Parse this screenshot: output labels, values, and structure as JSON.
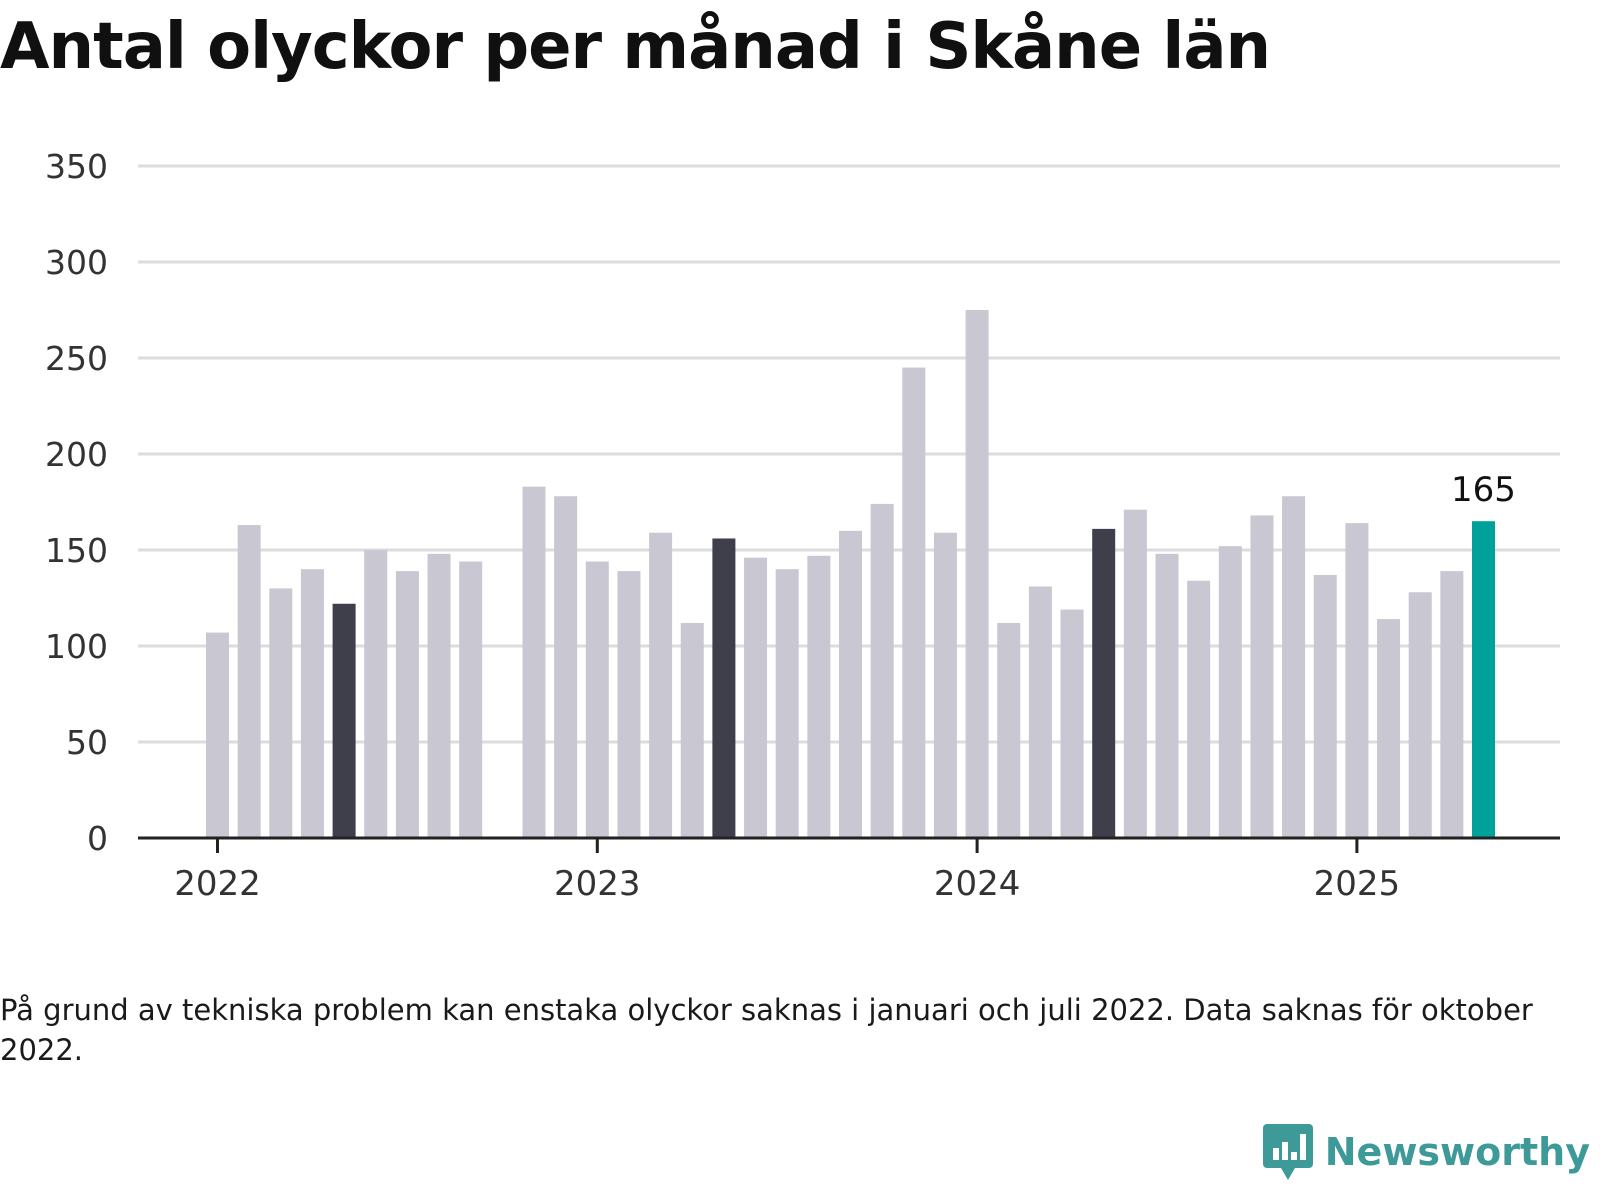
{
  "title": "Antal olyckor per månad i Skåne län",
  "footnote": "På grund av tekniska problem kan enstaka olyckor saknas i januari och juli 2022. Data saknas för oktober 2022.",
  "logo": {
    "text": "Newsworthy",
    "icon": "newsworthy-chart-bubble-icon"
  },
  "colors": {
    "default": "#c8c7d2",
    "highlight": "#3f3e4b",
    "latest": "#00a19a",
    "grid": "#dcdcdc",
    "axis": "#222222"
  },
  "chart_data": {
    "type": "bar",
    "title": "Antal olyckor per månad i Skåne län",
    "xlabel": "",
    "ylabel": "",
    "ylim": [
      0,
      350
    ],
    "yticks": [
      0,
      50,
      100,
      150,
      200,
      250,
      300,
      350
    ],
    "x_tick_labels": [
      "2022",
      "2023",
      "2024",
      "2025"
    ],
    "grid": "horizontal",
    "categories": [
      "2022-01",
      "2022-02",
      "2022-03",
      "2022-04",
      "2022-05",
      "2022-06",
      "2022-07",
      "2022-08",
      "2022-09",
      "2022-10",
      "2022-11",
      "2022-12",
      "2023-01",
      "2023-02",
      "2023-03",
      "2023-04",
      "2023-05",
      "2023-06",
      "2023-07",
      "2023-08",
      "2023-09",
      "2023-10",
      "2023-11",
      "2023-12",
      "2024-01",
      "2024-02",
      "2024-03",
      "2024-04",
      "2024-05",
      "2024-06",
      "2024-07",
      "2024-08",
      "2024-09",
      "2024-10",
      "2024-11",
      "2024-12",
      "2025-01",
      "2025-02",
      "2025-03",
      "2025-04",
      "2025-05"
    ],
    "values": [
      107,
      163,
      130,
      140,
      122,
      150,
      139,
      148,
      144,
      null,
      183,
      178,
      144,
      139,
      159,
      112,
      156,
      146,
      140,
      147,
      160,
      174,
      245,
      159,
      275,
      112,
      131,
      119,
      161,
      171,
      148,
      134,
      152,
      168,
      178,
      137,
      164,
      114,
      128,
      139,
      165
    ],
    "highlighted": [
      "2022-05",
      "2023-05",
      "2024-05"
    ],
    "latest": "2025-05",
    "data_labels": [
      {
        "category": "2025-05",
        "text": "165"
      }
    ]
  }
}
